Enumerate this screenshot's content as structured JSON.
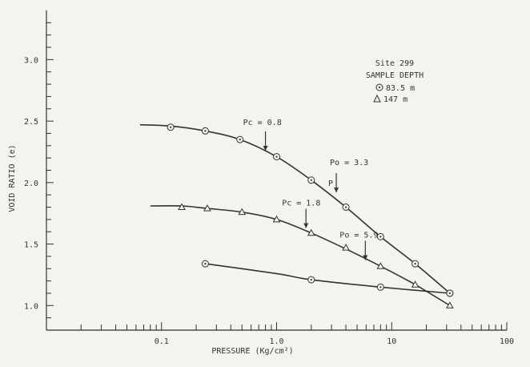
{
  "chart_data": {
    "type": "line",
    "xlabel": "PRESSURE (Kg/cm²)",
    "ylabel": "VOID RATIO (e)",
    "xscale": "log",
    "xlim": [
      0.01,
      100
    ],
    "ylim": [
      0.8,
      3.4
    ],
    "x_tick_labels": [
      {
        "value": 0.1,
        "label": "0.1"
      },
      {
        "value": 1,
        "label": "1.0"
      },
      {
        "value": 10,
        "label": "10"
      },
      {
        "value": 100,
        "label": "100"
      }
    ],
    "y_tick_labels": [
      {
        "value": 1.0,
        "label": "1.0"
      },
      {
        "value": 1.5,
        "label": "1.5"
      },
      {
        "value": 2.0,
        "label": "2.0"
      },
      {
        "value": 2.5,
        "label": "2.5"
      },
      {
        "value": 3.0,
        "label": "3.0"
      }
    ],
    "legend": {
      "title_lines": [
        "Site 299",
        "SAMPLE DEPTH"
      ],
      "entries": [
        "83.5 m",
        "147 m"
      ],
      "placement": "top-right"
    },
    "series": [
      {
        "name": "83.5 m",
        "marker": "circle-dot",
        "curve": [
          [
            0.065,
            2.47
          ],
          [
            0.12,
            2.46
          ],
          [
            0.24,
            2.42
          ],
          [
            0.48,
            2.35
          ],
          [
            1.0,
            2.21
          ],
          [
            2.0,
            2.02
          ],
          [
            4.0,
            1.8
          ],
          [
            8.0,
            1.56
          ],
          [
            16.0,
            1.34
          ],
          [
            32.0,
            1.1
          ]
        ],
        "points": [
          [
            0.12,
            2.45
          ],
          [
            0.24,
            2.42
          ],
          [
            0.48,
            2.35
          ],
          [
            1.0,
            2.21
          ],
          [
            2.0,
            2.02
          ],
          [
            4.0,
            1.8
          ],
          [
            8.0,
            1.56
          ],
          [
            16.0,
            1.34
          ],
          [
            32.0,
            1.1
          ]
        ]
      },
      {
        "name": "147 m",
        "marker": "triangle",
        "curve": [
          [
            0.08,
            1.81
          ],
          [
            0.15,
            1.81
          ],
          [
            0.25,
            1.79
          ],
          [
            0.5,
            1.76
          ],
          [
            1.0,
            1.7
          ],
          [
            2.0,
            1.59
          ],
          [
            4.0,
            1.46
          ],
          [
            8.0,
            1.32
          ],
          [
            16.0,
            1.17
          ],
          [
            32.0,
            1.0
          ]
        ],
        "points": [
          [
            0.15,
            1.8
          ],
          [
            0.25,
            1.79
          ],
          [
            0.5,
            1.76
          ],
          [
            1.0,
            1.7
          ],
          [
            2.0,
            1.59
          ],
          [
            4.0,
            1.47
          ],
          [
            8.0,
            1.32
          ],
          [
            16.0,
            1.17
          ],
          [
            32.0,
            1.0
          ]
        ]
      },
      {
        "name": "",
        "marker": "circle-dot",
        "curve": [
          [
            0.24,
            1.34
          ],
          [
            1.0,
            1.26
          ],
          [
            2.0,
            1.21
          ],
          [
            8.0,
            1.15
          ],
          [
            32.0,
            1.1
          ]
        ],
        "points": [
          [
            0.24,
            1.34
          ],
          [
            2.0,
            1.21
          ],
          [
            8.0,
            1.15
          ],
          [
            32.0,
            1.1
          ]
        ]
      }
    ],
    "annotations": [
      {
        "text": "Pc = 0.8",
        "x": 0.8,
        "y_arrow": 2.26
      },
      {
        "text": "Po = 3.3",
        "x": 3.3,
        "y_arrow": 1.92
      },
      {
        "text": "P",
        "x": 3.3,
        "y_arrow": null
      },
      {
        "text": "Pc = 1.8",
        "x": 1.8,
        "y_arrow": 1.63
      },
      {
        "text": "Po = 5.9",
        "x": 5.9,
        "y_arrow": 1.37
      }
    ]
  }
}
